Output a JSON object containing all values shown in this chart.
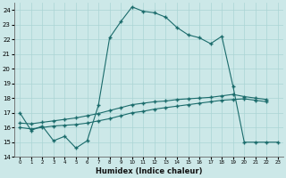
{
  "lineA_x": [
    0,
    1,
    2,
    3,
    4,
    5,
    6,
    7,
    8,
    9,
    10,
    11,
    12,
    13,
    14,
    15,
    16,
    17,
    18,
    19,
    20,
    21,
    22,
    23
  ],
  "lineA_y": [
    17.0,
    15.8,
    16.1,
    15.1,
    15.4,
    14.6,
    15.1,
    17.5,
    22.1,
    23.2,
    24.2,
    23.9,
    23.8,
    23.5,
    22.8,
    22.3,
    22.1,
    21.7,
    22.2,
    18.8,
    15.0,
    15.0,
    15.0,
    15.0
  ],
  "lineB_x": [
    0,
    1,
    2,
    3,
    4,
    5,
    6,
    7,
    8,
    9,
    10,
    11,
    12,
    13,
    14,
    15,
    16,
    17,
    18,
    19,
    20,
    21,
    22
  ],
  "lineB_y": [
    16.0,
    15.9,
    16.0,
    16.1,
    16.15,
    16.2,
    16.3,
    16.45,
    16.6,
    16.8,
    17.0,
    17.1,
    17.25,
    17.35,
    17.45,
    17.55,
    17.65,
    17.75,
    17.85,
    17.9,
    17.95,
    17.85,
    17.75
  ],
  "lineC_x": [
    0,
    1,
    2,
    3,
    4,
    5,
    6,
    7,
    8,
    9,
    10,
    11,
    12,
    13,
    14,
    15,
    16,
    17,
    18,
    19,
    20,
    21,
    22
  ],
  "lineC_y": [
    16.3,
    16.25,
    16.35,
    16.45,
    16.55,
    16.65,
    16.8,
    16.95,
    17.15,
    17.35,
    17.55,
    17.65,
    17.75,
    17.8,
    17.9,
    17.95,
    18.0,
    18.05,
    18.15,
    18.25,
    18.1,
    18.0,
    17.9
  ],
  "bg_color": "#cce8e8",
  "line_color": "#1a6b6b",
  "grid_color": "#aad4d4",
  "xlabel": "Humidex (Indice chaleur)",
  "ylim": [
    14,
    24.5
  ],
  "xlim": [
    -0.5,
    23.5
  ],
  "yticks": [
    14,
    15,
    16,
    17,
    18,
    19,
    20,
    21,
    22,
    23,
    24
  ],
  "xticks": [
    0,
    1,
    2,
    3,
    4,
    5,
    6,
    7,
    8,
    9,
    10,
    11,
    12,
    13,
    14,
    15,
    16,
    17,
    18,
    19,
    20,
    21,
    22,
    23
  ]
}
